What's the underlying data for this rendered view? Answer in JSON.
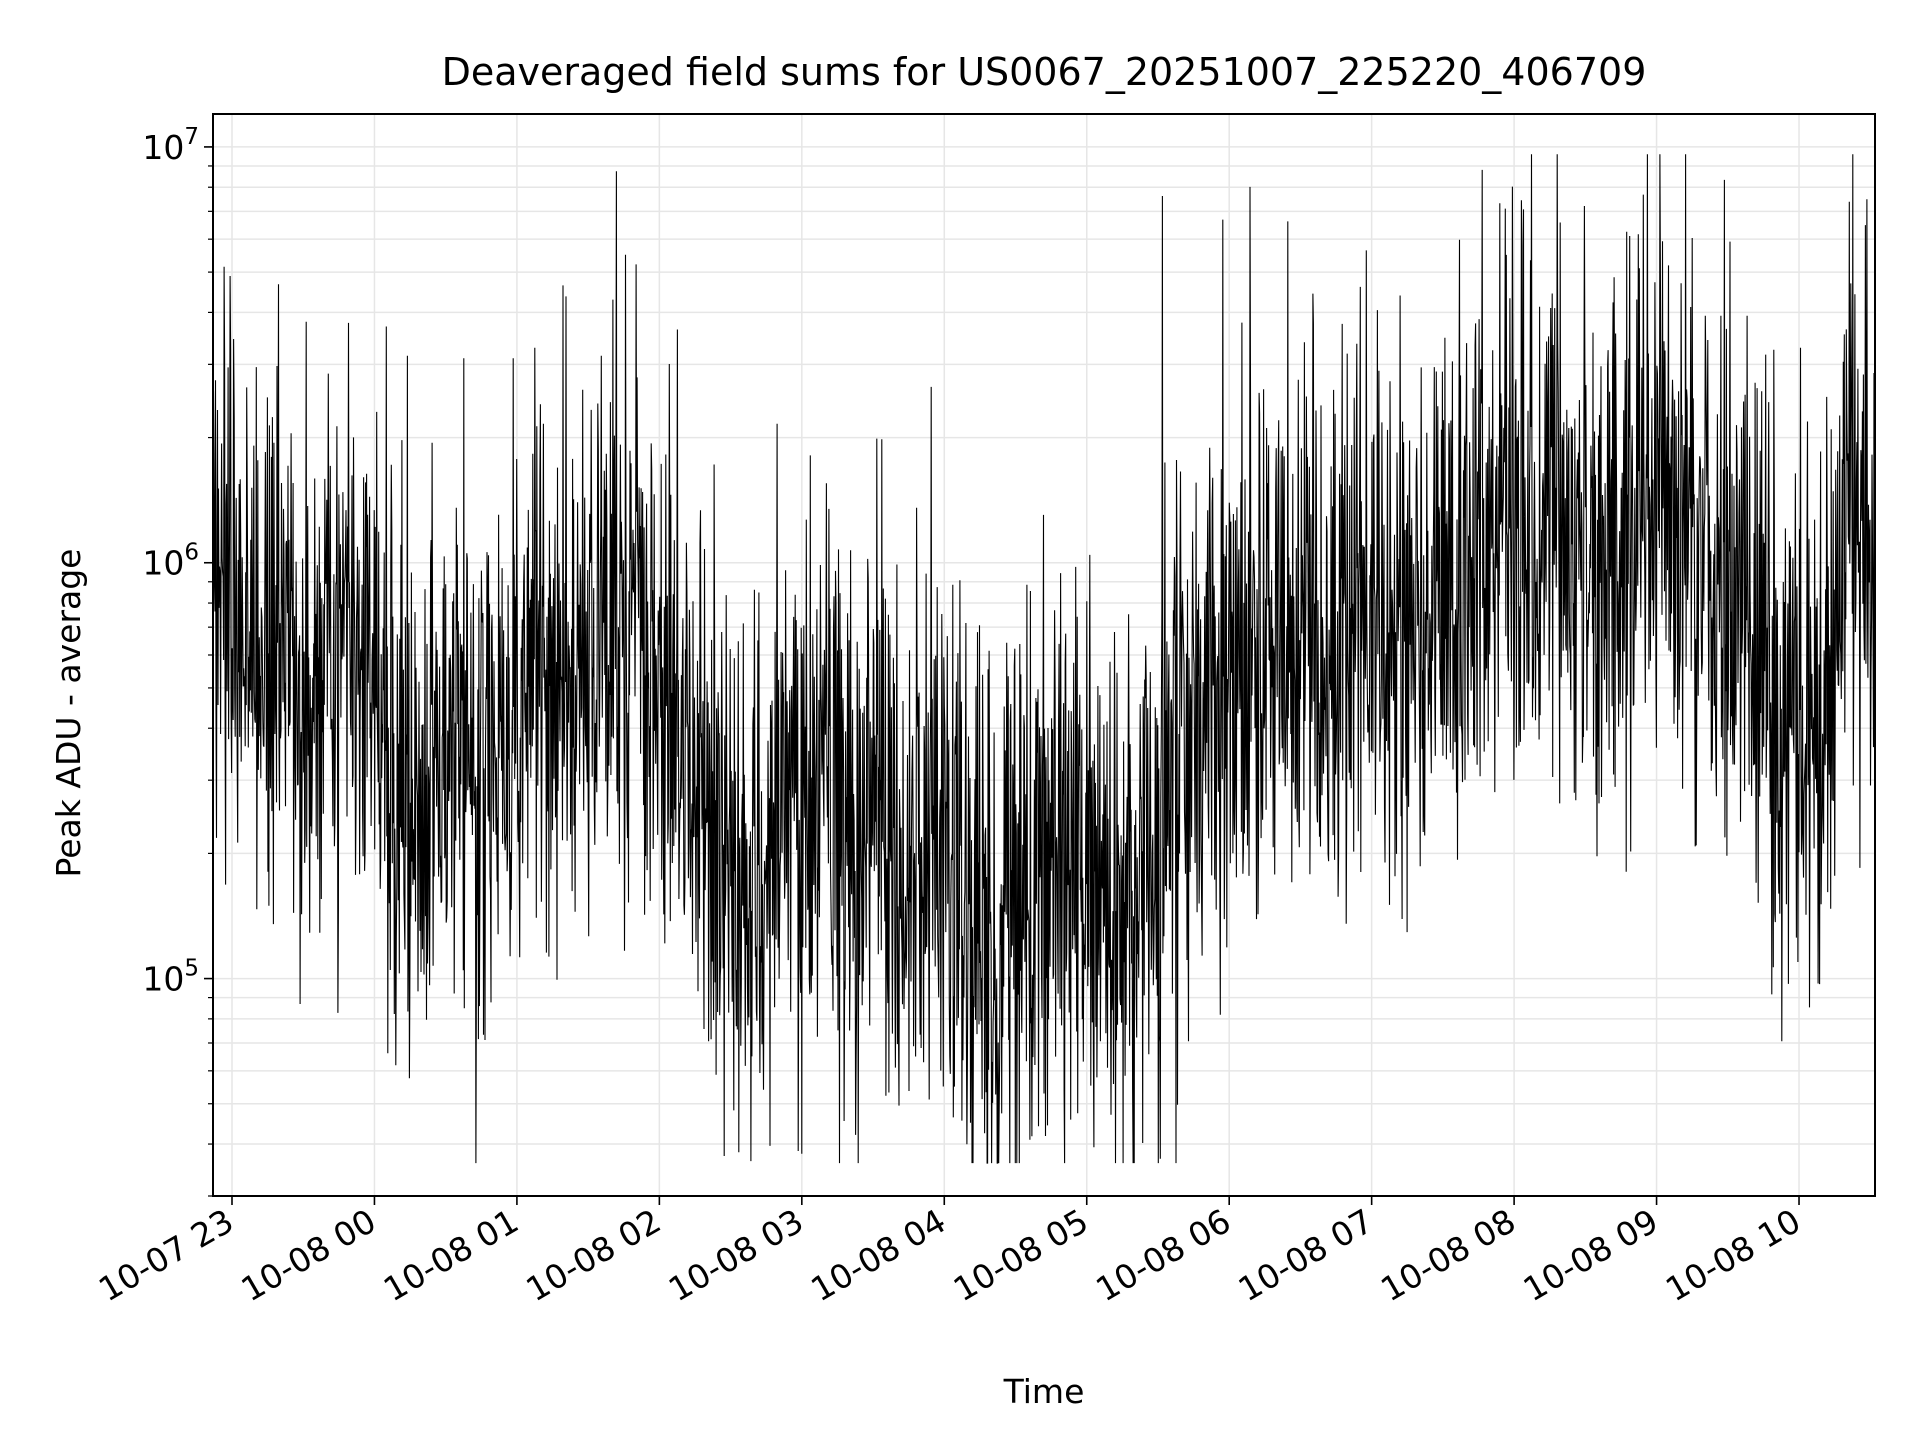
{
  "chart_data": {
    "type": "line",
    "title": "Deaveraged field sums for US0067_20251007_225220_406709",
    "xlabel": "Time",
    "ylabel": "Peak ADU - average",
    "y_scale": "log",
    "ylim": [
      30000,
      12000000
    ],
    "xlim": [
      "2025-10-07 22:52",
      "2025-10-08 10:32"
    ],
    "grid": true,
    "line_color": "#000000",
    "grid_color": "#e6e6e6",
    "x_ticks": [
      {
        "t": "2025-10-07 23:00",
        "label": "10-07 23"
      },
      {
        "t": "2025-10-08 00:00",
        "label": "10-08 00"
      },
      {
        "t": "2025-10-08 01:00",
        "label": "10-08 01"
      },
      {
        "t": "2025-10-08 02:00",
        "label": "10-08 02"
      },
      {
        "t": "2025-10-08 03:00",
        "label": "10-08 03"
      },
      {
        "t": "2025-10-08 04:00",
        "label": "10-08 04"
      },
      {
        "t": "2025-10-08 05:00",
        "label": "10-08 05"
      },
      {
        "t": "2025-10-08 06:00",
        "label": "10-08 06"
      },
      {
        "t": "2025-10-08 07:00",
        "label": "10-08 07"
      },
      {
        "t": "2025-10-08 08:00",
        "label": "10-08 08"
      },
      {
        "t": "2025-10-08 09:00",
        "label": "10-08 09"
      },
      {
        "t": "2025-10-08 10:00",
        "label": "10-08 10"
      }
    ],
    "y_ticks": [
      {
        "value": 100000,
        "base": "10",
        "exp": "5"
      },
      {
        "value": 1000000,
        "base": "10",
        "exp": "6"
      },
      {
        "value": 10000000,
        "base": "10",
        "exp": "7"
      }
    ],
    "series": [
      {
        "x": [
          "2025-10-07 22:52",
          "2025-10-07 23:00",
          "2025-10-07 23:10",
          "2025-10-07 23:20",
          "2025-10-07 23:30",
          "2025-10-07 23:40",
          "2025-10-07 23:50",
          "2025-10-08 00:00",
          "2025-10-08 00:10",
          "2025-10-08 00:20",
          "2025-10-08 00:30",
          "2025-10-08 00:40",
          "2025-10-08 00:50",
          "2025-10-08 01:00",
          "2025-10-08 01:10",
          "2025-10-08 01:20",
          "2025-10-08 01:30",
          "2025-10-08 01:40",
          "2025-10-08 01:50",
          "2025-10-08 02:00",
          "2025-10-08 02:10",
          "2025-10-08 02:20",
          "2025-10-08 02:30",
          "2025-10-08 02:40",
          "2025-10-08 02:50",
          "2025-10-08 03:00",
          "2025-10-08 03:10",
          "2025-10-08 03:20",
          "2025-10-08 03:30",
          "2025-10-08 03:40",
          "2025-10-08 03:50",
          "2025-10-08 04:00",
          "2025-10-08 04:10",
          "2025-10-08 04:20",
          "2025-10-08 04:30",
          "2025-10-08 04:40",
          "2025-10-08 04:50",
          "2025-10-08 05:00",
          "2025-10-08 05:10",
          "2025-10-08 05:20",
          "2025-10-08 05:30",
          "2025-10-08 05:40",
          "2025-10-08 05:50",
          "2025-10-08 06:00",
          "2025-10-08 06:10",
          "2025-10-08 06:20",
          "2025-10-08 06:30",
          "2025-10-08 06:40",
          "2025-10-08 06:50",
          "2025-10-08 07:00",
          "2025-10-08 07:10",
          "2025-10-08 07:20",
          "2025-10-08 07:30",
          "2025-10-08 07:40",
          "2025-10-08 07:50",
          "2025-10-08 08:00",
          "2025-10-08 08:10",
          "2025-10-08 08:20",
          "2025-10-08 08:30",
          "2025-10-08 08:40",
          "2025-10-08 08:50",
          "2025-10-08 09:00",
          "2025-10-08 09:10",
          "2025-10-08 09:20",
          "2025-10-08 09:30",
          "2025-10-08 09:40",
          "2025-10-08 09:50",
          "2025-10-08 10:00",
          "2025-10-08 10:10",
          "2025-10-08 10:20",
          "2025-10-08 10:32"
        ],
        "y": [
          1000000,
          700000,
          450000,
          600000,
          350000,
          500000,
          550000,
          400000,
          250000,
          230000,
          280000,
          300000,
          270000,
          330000,
          520000,
          450000,
          420000,
          700000,
          650000,
          520000,
          380000,
          200000,
          160000,
          180000,
          190000,
          230000,
          260000,
          230000,
          210000,
          190000,
          170000,
          150000,
          110000,
          120000,
          150000,
          170000,
          160000,
          150000,
          130000,
          140000,
          220000,
          300000,
          380000,
          450000,
          500000,
          600000,
          550000,
          650000,
          520000,
          580000,
          620000,
          800000,
          750000,
          900000,
          1000000,
          1300000,
          1150000,
          1000000,
          950000,
          850000,
          1100000,
          1400000,
          1100000,
          900000,
          780000,
          700000,
          400000,
          300000,
          320000,
          900000,
          1000000
        ]
      }
    ]
  }
}
